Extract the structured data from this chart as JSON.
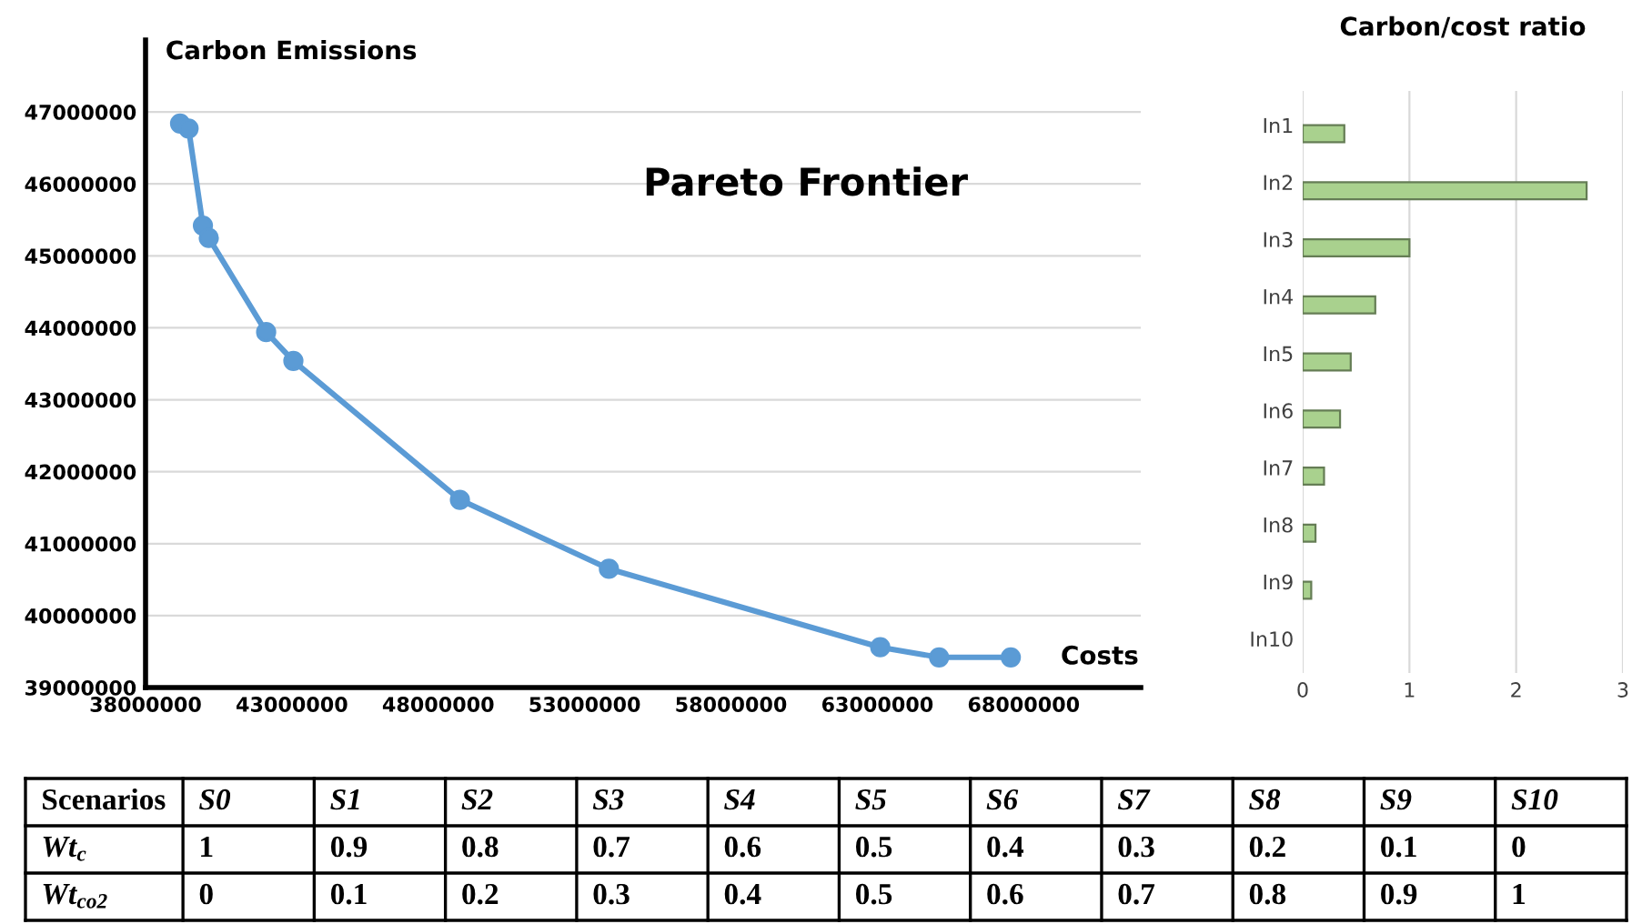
{
  "chart_data": [
    {
      "type": "line",
      "title": "Pareto Frontier",
      "xlabel": "Costs",
      "ylabel": "Carbon Emissions",
      "x": [
        39180000,
        39470000,
        39960000,
        40160000,
        42120000,
        43050000,
        48740000,
        53830000,
        63100000,
        65110000,
        67560000
      ],
      "series": [
        {
          "color": "#5b9bd5",
          "values": [
            46840000,
            46770000,
            45420000,
            45250000,
            43940000,
            43540000,
            41610000,
            40650000,
            39560000,
            39420000,
            39420000
          ]
        }
      ],
      "xlim": [
        38000000,
        72000000
      ],
      "xticks": [
        38000000,
        43000000,
        48000000,
        53000000,
        58000000,
        63000000,
        68000000
      ],
      "ylim": [
        39000000,
        48000000
      ],
      "yticks": [
        39000000,
        40000000,
        41000000,
        42000000,
        43000000,
        44000000,
        45000000,
        46000000,
        47000000
      ],
      "grid": "y",
      "marker": "circle",
      "line_style": "solid"
    },
    {
      "type": "bar",
      "orientation": "horizontal",
      "title": "Carbon/cost ratio",
      "categories": [
        "In1",
        "In2",
        "In3",
        "In4",
        "In5",
        "In6",
        "In7",
        "In8",
        "In9",
        "In10"
      ],
      "values": [
        0.39,
        2.66,
        1.0,
        0.68,
        0.45,
        0.35,
        0.2,
        0.12,
        0.08,
        null
      ],
      "color": "#a9d18e",
      "xlim": [
        0,
        3
      ],
      "xticks": [
        0,
        1,
        2,
        3
      ],
      "grid": "x"
    },
    {
      "type": "heatmap",
      "ylabel": "Scenarios",
      "data_labels": true,
      "categories": [
        "S0",
        "S1",
        "S2",
        "S3",
        "S4",
        "S5",
        "S6",
        "S7",
        "S8",
        "S9",
        "S10"
      ],
      "y_categories": [
        "Wt$_{c}$",
        "Wt$_{co2}$"
      ],
      "cells": [
        [
          1,
          0.9,
          0.8,
          0.7,
          0.6,
          0.5,
          0.4,
          0.3,
          0.2,
          0.1,
          0
        ],
        [
          0,
          0.1,
          0.2,
          0.3,
          0.4,
          0.5,
          0.6,
          0.7,
          0.8,
          0.9,
          1
        ]
      ]
    }
  ]
}
